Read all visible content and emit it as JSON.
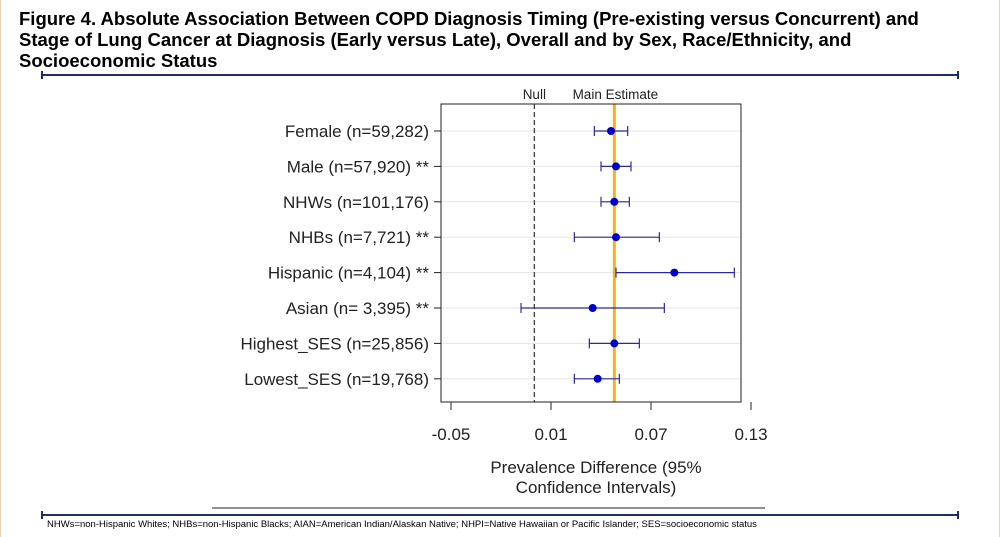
{
  "title": "Figure 4. Absolute Association Between COPD Diagnosis Timing (Pre-existing versus Concurrent) and Stage of Lung Cancer at Diagnosis (Early versus Late), Overall and by Sex, Race/Ethnicity, and Socioeconomic Status",
  "footnote": "NHWs=non-Hispanic Whites; NHBs=non-Hispanic Blacks; AIAN=American Indian/Alaskan Native; NHPI=Native Hawaiian or Pacific Islander; SES=socioeconomic status",
  "colors": {
    "rule": "#1d2f6b",
    "marker": "#0000cc",
    "ci": "#2a2a9a",
    "main_line": "#f5b21c",
    "null_line": "#333333"
  },
  "chart_data": {
    "type": "forest",
    "xlabel": "Prevalence Difference (95% Confidence Intervals)",
    "xlabel_lines": [
      "Prevalence Difference (95%",
      "Confidence Intervals)"
    ],
    "xlim": [
      -0.05,
      0.13
    ],
    "xticks": [
      -0.05,
      0.01,
      0.07,
      0.13
    ],
    "xtick_labels": [
      "-0.05",
      "0.01",
      "0.07",
      "0.13"
    ],
    "reference_lines": [
      {
        "label": "Null",
        "x": 0.0,
        "style": "dashed"
      },
      {
        "label": "Main Estimate",
        "x": 0.048,
        "style": "solid"
      }
    ],
    "grid": true,
    "rows": [
      {
        "label": "Female (n=59,282)",
        "estimate": 0.046,
        "lower": 0.036,
        "upper": 0.056
      },
      {
        "label": "Male (n=57,920) **",
        "estimate": 0.049,
        "lower": 0.04,
        "upper": 0.058
      },
      {
        "label": "NHWs (n=101,176)",
        "estimate": 0.048,
        "lower": 0.04,
        "upper": 0.057
      },
      {
        "label": "NHBs (n=7,721) **",
        "estimate": 0.049,
        "lower": 0.024,
        "upper": 0.075
      },
      {
        "label": "Hispanic (n=4,104) **",
        "estimate": 0.084,
        "lower": 0.049,
        "upper": 0.12
      },
      {
        "label": "Asian (n= 3,395) **",
        "estimate": 0.035,
        "lower": -0.008,
        "upper": 0.078
      },
      {
        "label": "Highest_SES (n=25,856)",
        "estimate": 0.048,
        "lower": 0.033,
        "upper": 0.063
      },
      {
        "label": "Lowest_SES (n=19,768)",
        "estimate": 0.038,
        "lower": 0.024,
        "upper": 0.051
      }
    ]
  }
}
